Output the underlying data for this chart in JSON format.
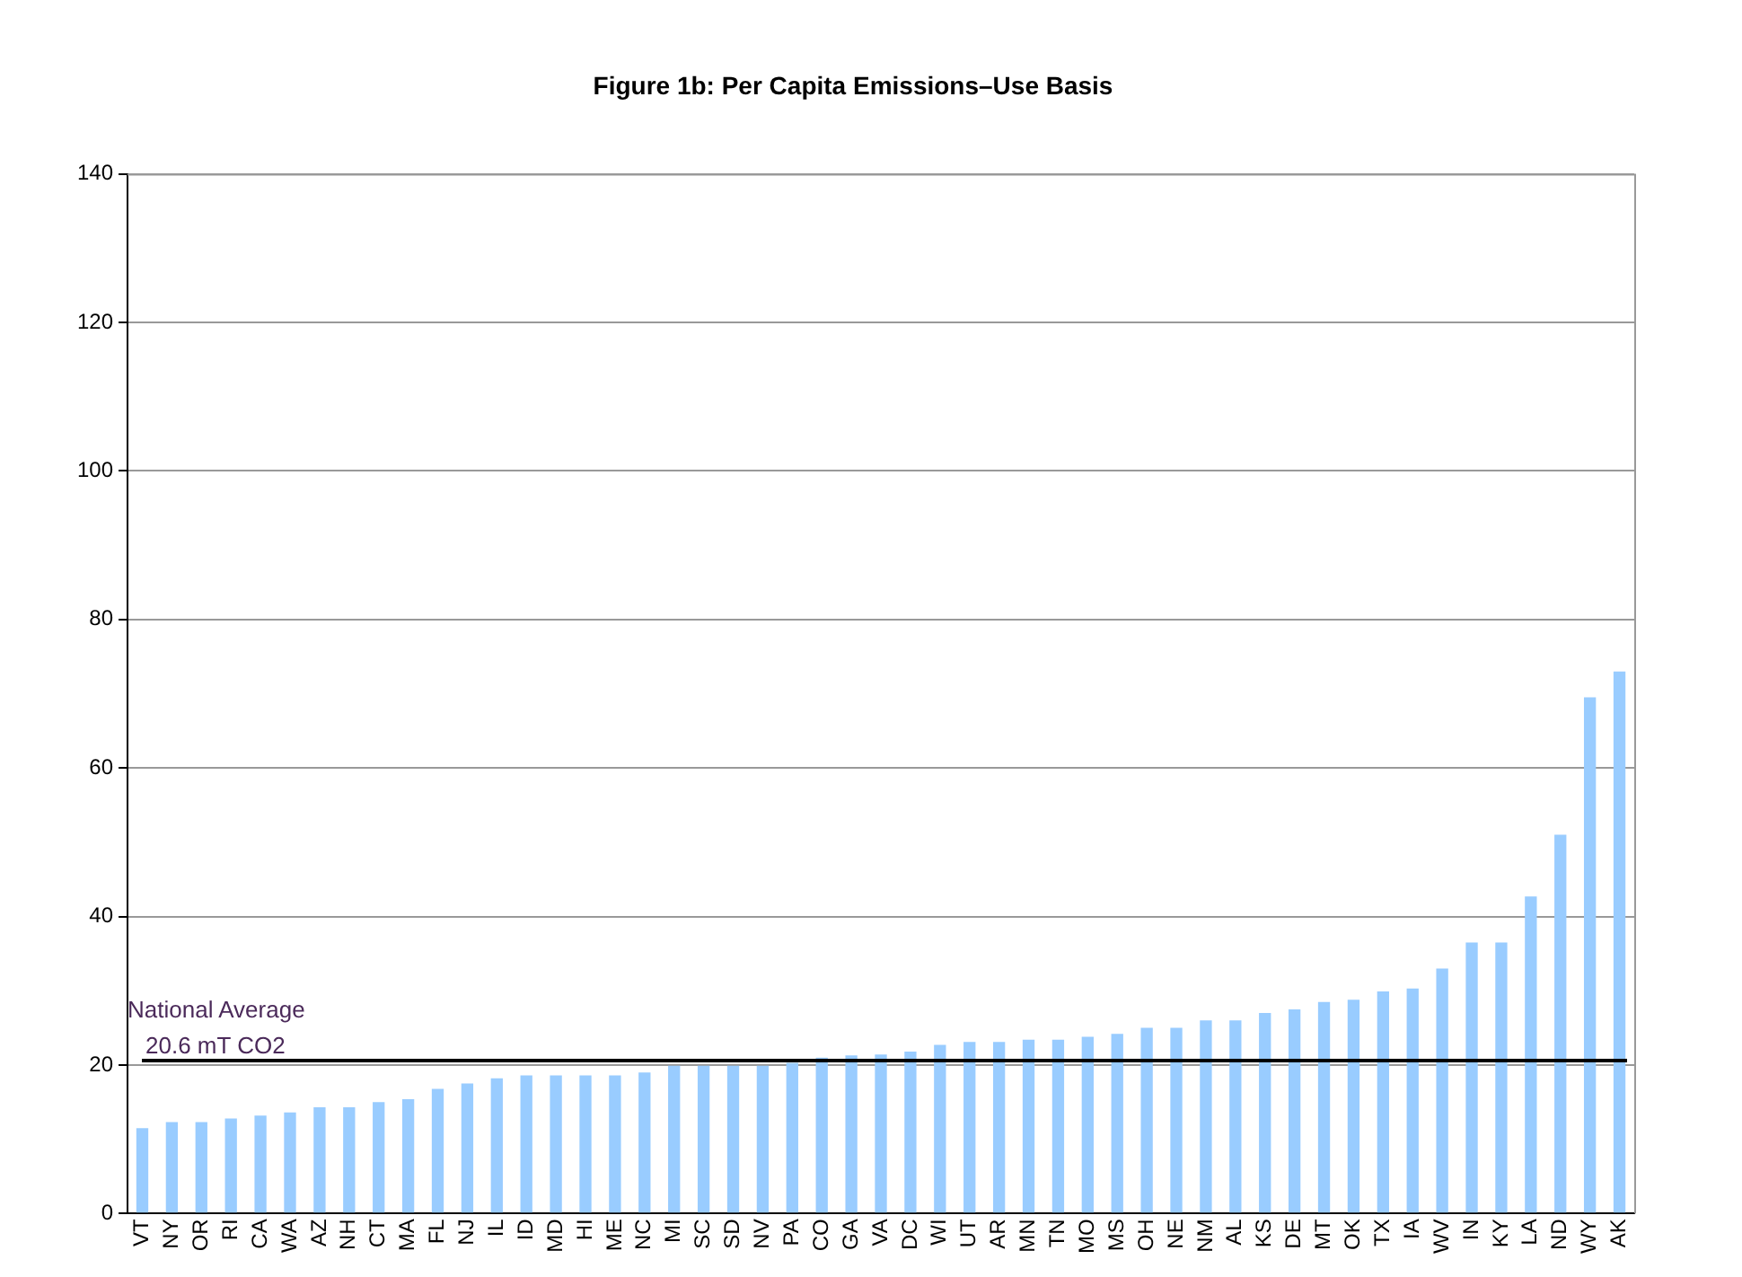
{
  "chart_data": {
    "type": "bar",
    "title": "Figure 1b: Per Capita Emissions–Use Basis",
    "categories": [
      "VT",
      "NY",
      "OR",
      "RI",
      "CA",
      "WA",
      "AZ",
      "NH",
      "CT",
      "MA",
      "FL",
      "NJ",
      "IL",
      "ID",
      "MD",
      "HI",
      "ME",
      "NC",
      "MI",
      "SC",
      "SD",
      "NV",
      "PA",
      "CO",
      "GA",
      "VA",
      "DC",
      "WI",
      "UT",
      "AR",
      "MN",
      "TN",
      "MO",
      "MS",
      "OH",
      "NE",
      "NM",
      "AL",
      "KS",
      "DE",
      "MT",
      "OK",
      "TX",
      "IA",
      "WV",
      "IN",
      "KY",
      "LA",
      "ND",
      "WY",
      "AK"
    ],
    "values": [
      11.5,
      12.3,
      12.3,
      12.8,
      13.2,
      13.6,
      14.3,
      14.3,
      15,
      15.4,
      16.8,
      17.5,
      18.2,
      18.6,
      18.6,
      18.6,
      18.6,
      19,
      19.9,
      19.9,
      19.9,
      19.9,
      20.3,
      21,
      21.3,
      21.4,
      21.8,
      22.7,
      23.1,
      23.1,
      23.4,
      23.4,
      23.8,
      24.2,
      25,
      25,
      26,
      26,
      27,
      27.5,
      28.5,
      28.8,
      29.9,
      30.3,
      33,
      36.5,
      36.5,
      42.7,
      51,
      69.5,
      73
    ],
    "color": "#99ccff",
    "ylim": [
      0,
      140
    ],
    "yticks": [
      0,
      20,
      40,
      60,
      80,
      100,
      120,
      140
    ],
    "grid": "y",
    "ref_lines": [
      {
        "axis": "y",
        "value": 20.6,
        "label": "National Average\n20.6 mT CO2",
        "color": "#000000"
      }
    ]
  }
}
